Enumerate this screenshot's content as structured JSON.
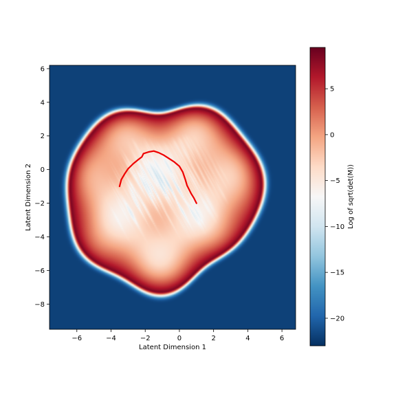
{
  "chart_data": {
    "type": "heatmap",
    "xlabel": "Latent Dimension 1",
    "ylabel": "Latent Dimension 2",
    "xlim": [
      -7.6,
      6.8
    ],
    "ylim": [
      -9.5,
      6.2
    ],
    "xticks": [
      -6,
      -4,
      -2,
      0,
      2,
      4,
      6
    ],
    "xtick_labels": [
      "−6",
      "−4",
      "−2",
      "0",
      "2",
      "4",
      "6"
    ],
    "yticks": [
      -8,
      -6,
      -4,
      -2,
      0,
      2,
      4,
      6
    ],
    "ytick_labels": [
      "−8",
      "−6",
      "−4",
      "−2",
      "0",
      "2",
      "4",
      "6"
    ],
    "colormap": "RdBu_r",
    "colorbar": {
      "label": "Log of sqrt(det(M))",
      "range": [
        -23,
        9.5
      ],
      "ticks": [
        5,
        0,
        -5,
        -10,
        -15,
        -20
      ],
      "tick_labels": [
        "5",
        "0",
        "−5",
        "−10",
        "−15",
        "−20"
      ]
    },
    "field": {
      "description_values": "approximate log-sqrt-det values: high ring near boundary, low interior web",
      "outside_value": -22,
      "ring_peak_value": 8.5,
      "interior_base_value": -4,
      "web_value": -11
    },
    "curve": {
      "color": "#ee0000",
      "x": [
        -3.5,
        -3.4,
        -3.2,
        -3.0,
        -2.7,
        -2.4,
        -2.2,
        -2.1,
        -1.8,
        -1.5,
        -1.2,
        -0.9,
        -0.6,
        -0.3,
        0.0,
        0.2,
        0.35,
        0.45,
        0.55,
        0.7,
        0.85,
        1.0
      ],
      "y": [
        -1.0,
        -0.6,
        -0.25,
        0.05,
        0.35,
        0.6,
        0.75,
        0.95,
        1.05,
        1.1,
        1.0,
        0.85,
        0.65,
        0.45,
        0.2,
        -0.15,
        -0.6,
        -0.95,
        -1.15,
        -1.45,
        -1.7,
        -2.0
      ]
    }
  }
}
